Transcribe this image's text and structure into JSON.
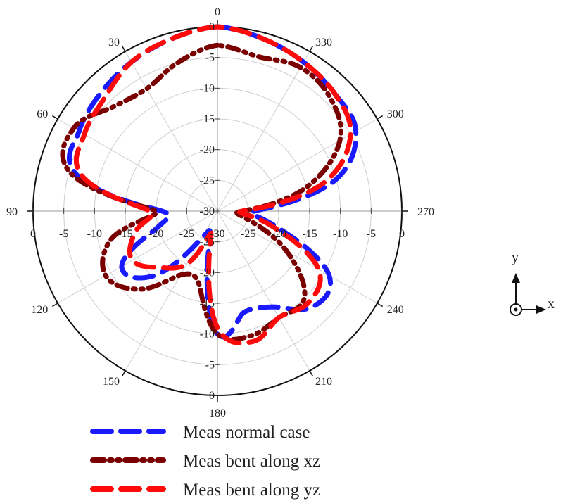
{
  "chart_data": {
    "type": "polar-line",
    "radial_unit": "dB",
    "r_range": [
      -30,
      0
    ],
    "angle_direction": "counterclockwise",
    "zero_angle_position": "top",
    "angle_ticks": [
      "0",
      "30",
      "60",
      "90",
      "120",
      "150",
      "180",
      "210",
      "240",
      "270",
      "300",
      "330"
    ],
    "radial_tick_labels_top": [
      "0",
      "-5",
      "-10",
      "-15",
      "-20",
      "-25",
      "-30"
    ],
    "radial_tick_labels_bottom": [
      "-30",
      "-25",
      "-20",
      "-15",
      "-10",
      "-5",
      "0"
    ],
    "radial_tick_labels_left": [
      "0",
      "-5",
      "-10",
      "-15",
      "-20",
      "-25",
      "-30"
    ],
    "radial_tick_labels_right": [
      "-30",
      "-25",
      "-20",
      "-15",
      "-10",
      "-5",
      "0"
    ],
    "grid": true,
    "legend_position": "bottom",
    "series": [
      {
        "name": "Meas normal case",
        "color": "#1a1aff",
        "style": "dash",
        "theta": [
          0,
          15,
          30,
          45,
          60,
          75,
          90,
          105,
          120,
          135,
          150,
          165,
          180,
          195,
          210,
          225,
          240,
          255,
          270,
          285,
          300,
          315,
          330,
          345,
          360
        ],
        "r": [
          0,
          -1,
          -2,
          -3,
          -4,
          -6,
          -21,
          -20,
          -12,
          -15,
          -25,
          -25,
          -10,
          -13,
          -12,
          -8,
          -9,
          -20,
          -24,
          -10,
          -4,
          -3,
          -2,
          -1,
          0
        ]
      },
      {
        "name": "Meas bent along xz",
        "color": "#7a0000",
        "style": "dash-dot-dot",
        "theta": [
          0,
          15,
          30,
          45,
          60,
          75,
          90,
          105,
          120,
          135,
          150,
          165,
          180,
          195,
          210,
          225,
          240,
          255,
          270,
          285,
          300,
          315,
          330,
          345,
          360
        ],
        "r": [
          -3,
          -5,
          -7,
          -6,
          -3,
          -5,
          -20,
          -12,
          -9,
          -12,
          -18,
          -18,
          -10,
          -9,
          -10,
          -10,
          -17,
          -25,
          -26,
          -15,
          -7,
          -4,
          -3,
          -4,
          -3
        ]
      },
      {
        "name": "Meas bent along yz",
        "color": "#ff0a0a",
        "style": "dash",
        "theta": [
          0,
          15,
          30,
          45,
          60,
          75,
          90,
          105,
          120,
          135,
          150,
          165,
          180,
          195,
          210,
          225,
          240,
          255,
          270,
          285,
          300,
          315,
          330,
          345,
          360
        ],
        "r": [
          0,
          -1,
          -2,
          -4,
          -5,
          -7,
          -19,
          -16,
          -14,
          -17,
          -20,
          -26,
          -11,
          -8,
          -10,
          -9,
          -11,
          -21,
          -26,
          -12,
          -5,
          -3,
          -2,
          -1,
          0
        ]
      }
    ]
  },
  "coordinate_legend": {
    "y_label": "y",
    "x_label": "x"
  }
}
